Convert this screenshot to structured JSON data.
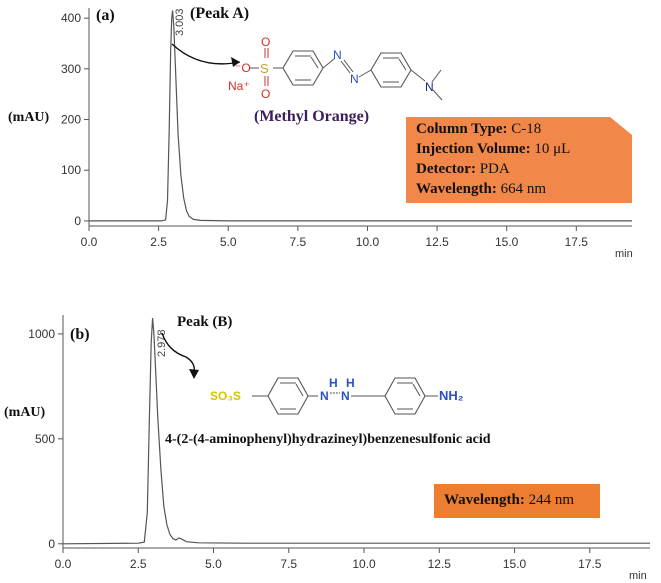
{
  "chart_data": [
    {
      "type": "line",
      "panel_label": "(a)",
      "ylabel": "(mAU)",
      "xlabel": "min",
      "xlim": [
        0,
        19.5
      ],
      "ylim": [
        -10,
        420
      ],
      "x_ticks": [
        "0.0",
        "2.5",
        "5.0",
        "7.5",
        "10.0",
        "12.5",
        "15.0",
        "17.5"
      ],
      "y_ticks": [
        "0",
        "100",
        "200",
        "300",
        "400"
      ],
      "peak": {
        "name": "(Peak A)",
        "retention_time": "3.003",
        "height": 415
      },
      "series_points": [
        [
          0,
          0
        ],
        [
          2.6,
          0
        ],
        [
          2.75,
          2
        ],
        [
          2.82,
          40
        ],
        [
          2.88,
          180
        ],
        [
          2.93,
          330
        ],
        [
          2.97,
          400
        ],
        [
          3.003,
          415
        ],
        [
          3.05,
          380
        ],
        [
          3.12,
          280
        ],
        [
          3.2,
          170
        ],
        [
          3.3,
          90
        ],
        [
          3.4,
          45
        ],
        [
          3.5,
          20
        ],
        [
          3.6,
          9
        ],
        [
          3.75,
          3
        ],
        [
          4.0,
          1
        ],
        [
          5.0,
          0
        ],
        [
          19.5,
          0
        ]
      ],
      "compound": {
        "name": "(Methyl Orange)",
        "o_minus": "⁻O",
        "na_plus": "Na⁺",
        "s": "S",
        "o": "O",
        "n": "N"
      },
      "info": {
        "column_label": "Column Type:",
        "column_value": "C-18",
        "volume_label": "Injection Volume:",
        "volume_value": "10 μL",
        "detector_label": "Detector:",
        "detector_value": "PDA",
        "wavelength_label": "Wavelength:",
        "wavelength_value": "664 nm"
      },
      "box_color": "#f2874a"
    },
    {
      "type": "line",
      "panel_label": "(b)",
      "ylabel": "(mAU)",
      "xlabel": "min",
      "xlim": [
        0,
        19.5
      ],
      "ylim": [
        -20,
        1090
      ],
      "x_ticks": [
        "0.0",
        "2.5",
        "5.0",
        "7.5",
        "10.0",
        "12.5",
        "15.0",
        "17.5"
      ],
      "y_ticks": [
        "0",
        "500",
        "1000"
      ],
      "peak": {
        "name": "Peak (B)",
        "retention_time": "2.978",
        "height": 1075
      },
      "series_points": [
        [
          0,
          0
        ],
        [
          2.5,
          3
        ],
        [
          2.7,
          8
        ],
        [
          2.8,
          150
        ],
        [
          2.87,
          600
        ],
        [
          2.93,
          960
        ],
        [
          2.978,
          1075
        ],
        [
          3.02,
          1000
        ],
        [
          3.08,
          820
        ],
        [
          3.15,
          600
        ],
        [
          3.25,
          360
        ],
        [
          3.35,
          180
        ],
        [
          3.45,
          90
        ],
        [
          3.55,
          45
        ],
        [
          3.65,
          25
        ],
        [
          3.75,
          18
        ],
        [
          3.85,
          28
        ],
        [
          3.95,
          22
        ],
        [
          4.1,
          10
        ],
        [
          4.5,
          5
        ],
        [
          6,
          3
        ],
        [
          12,
          3
        ],
        [
          19.5,
          3
        ]
      ],
      "compound": {
        "name": "4-(2-(4-aminophenyl)hydrazineyl)benzenesulfonic acid",
        "so3h": "SO₃S",
        "h": "H",
        "n": "N",
        "nh2": "NH₂"
      },
      "info": {
        "wavelength_label": "Wavelength:",
        "wavelength_value": "244 nm"
      },
      "box_color": "#ed7d31"
    }
  ],
  "colors": {
    "trace": "#555555",
    "axis": "#555555",
    "red": "#d0302a",
    "gold": "#c9a227",
    "yellow": "#d6c600",
    "blue": "#2a4fc9",
    "navy": "#1a2a70",
    "purple": "#3a1f5a"
  }
}
